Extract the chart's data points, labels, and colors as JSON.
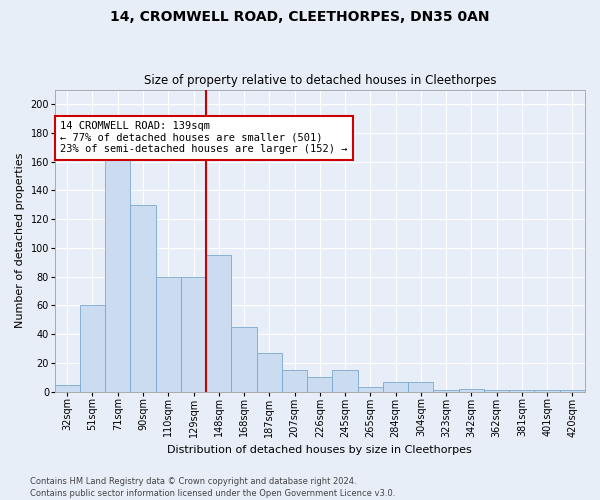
{
  "title": "14, CROMWELL ROAD, CLEETHORPES, DN35 0AN",
  "subtitle": "Size of property relative to detached houses in Cleethorpes",
  "xlabel": "Distribution of detached houses by size in Cleethorpes",
  "ylabel": "Number of detached properties",
  "footer_line1": "Contains HM Land Registry data © Crown copyright and database right 2024.",
  "footer_line2": "Contains public sector information licensed under the Open Government Licence v3.0.",
  "categories": [
    "32sqm",
    "51sqm",
    "71sqm",
    "90sqm",
    "110sqm",
    "129sqm",
    "148sqm",
    "168sqm",
    "187sqm",
    "207sqm",
    "226sqm",
    "245sqm",
    "265sqm",
    "284sqm",
    "304sqm",
    "323sqm",
    "342sqm",
    "362sqm",
    "381sqm",
    "401sqm",
    "420sqm"
  ],
  "values": [
    5,
    60,
    165,
    130,
    80,
    80,
    95,
    45,
    27,
    15,
    10,
    15,
    3,
    7,
    7,
    1,
    2,
    1,
    1,
    1,
    1
  ],
  "bar_color": "#ccdcf0",
  "bar_edge_color": "#7aaad0",
  "background_color": "#e8eef8",
  "grid_color": "#ffffff",
  "vline_color": "#cc0000",
  "vline_x_index": 6,
  "annotation_text": "14 CROMWELL ROAD: 139sqm\n← 77% of detached houses are smaller (501)\n23% of semi-detached houses are larger (152) →",
  "annotation_box_color": "#cc0000",
  "ylim": [
    0,
    210
  ],
  "yticks": [
    0,
    20,
    40,
    60,
    80,
    100,
    120,
    140,
    160,
    180,
    200
  ],
  "title_fontsize": 10,
  "subtitle_fontsize": 8.5,
  "ylabel_fontsize": 8,
  "xlabel_fontsize": 8,
  "tick_fontsize": 7,
  "annot_fontsize": 7.5,
  "footer_fontsize": 6
}
